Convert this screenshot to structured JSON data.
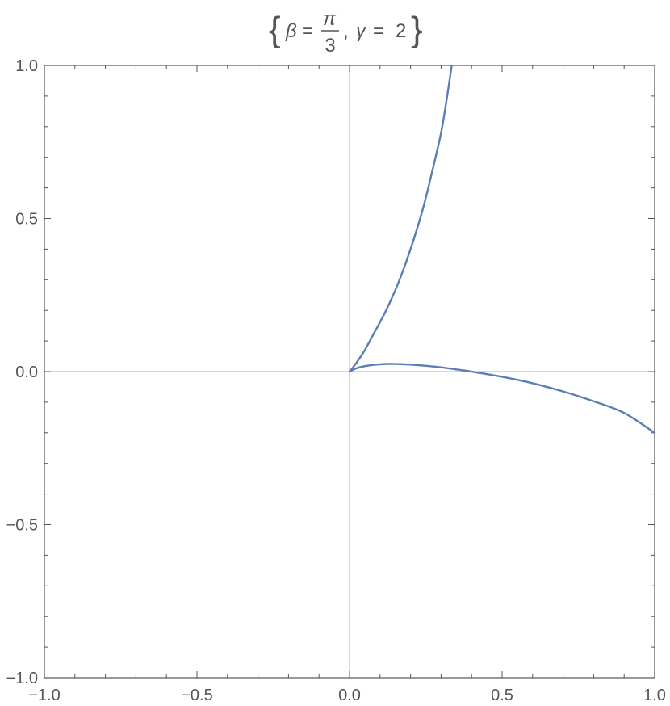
{
  "chart_data": {
    "type": "line",
    "title": {
      "lbrace": "{",
      "beta": "β",
      "eq1": "=",
      "pi": "π",
      "three": "3",
      "comma": ",",
      "gamma": "γ",
      "eq2": "=",
      "two": "2",
      "rbrace": "}"
    },
    "xlabel": "",
    "ylabel": "",
    "xlim": [
      -1.0,
      1.0
    ],
    "ylim": [
      -1.0,
      1.0
    ],
    "grid": false,
    "axes_origin": [
      0,
      0
    ],
    "x_ticks": [
      -1.0,
      -0.5,
      0.0,
      0.5,
      1.0
    ],
    "y_ticks": [
      -1.0,
      -0.5,
      0.0,
      0.5,
      1.0
    ],
    "x_tick_labels": [
      "−1.0",
      "−0.5",
      "0.0",
      "0.5",
      "1.0"
    ],
    "y_tick_labels": [
      "−1.0",
      "−0.5",
      "0.0",
      "0.5",
      "1.0"
    ],
    "series": [
      {
        "color": "#5b7fb4",
        "x": [
          0.0,
          0.02,
          0.05,
          0.08,
          0.12,
          0.16,
          0.2,
          0.24,
          0.27,
          0.3,
          0.32,
          0.335
        ],
        "y": [
          0.0,
          0.025,
          0.07,
          0.125,
          0.2,
          0.29,
          0.4,
          0.53,
          0.65,
          0.78,
          0.9,
          1.0
        ]
      },
      {
        "color": "#5b7fb4",
        "x": [
          0.0,
          0.02,
          0.05,
          0.1,
          0.15,
          0.2,
          0.25,
          0.3,
          0.35,
          0.4,
          0.5,
          0.6,
          0.7,
          0.8,
          0.9,
          1.0
        ],
        "y": [
          0.0,
          0.01,
          0.018,
          0.024,
          0.025,
          0.023,
          0.019,
          0.014,
          0.007,
          0.0,
          -0.017,
          -0.038,
          -0.065,
          -0.097,
          -0.135,
          -0.2
        ]
      }
    ]
  }
}
